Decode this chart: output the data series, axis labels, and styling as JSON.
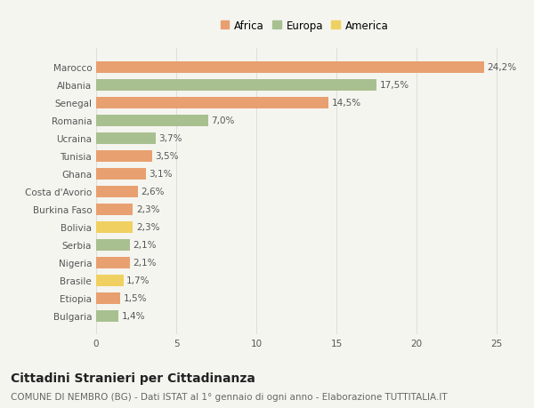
{
  "categories": [
    "Bulgaria",
    "Etiopia",
    "Brasile",
    "Nigeria",
    "Serbia",
    "Bolivia",
    "Burkina Faso",
    "Costa d'Avorio",
    "Ghana",
    "Tunisia",
    "Ucraina",
    "Romania",
    "Senegal",
    "Albania",
    "Marocco"
  ],
  "values": [
    1.4,
    1.5,
    1.7,
    2.1,
    2.1,
    2.3,
    2.3,
    2.6,
    3.1,
    3.5,
    3.7,
    7.0,
    14.5,
    17.5,
    24.2
  ],
  "colors": [
    "#a8c090",
    "#e8a070",
    "#f0d060",
    "#e8a070",
    "#a8c090",
    "#f0d060",
    "#e8a070",
    "#e8a070",
    "#e8a070",
    "#e8a070",
    "#a8c090",
    "#a8c090",
    "#e8a070",
    "#a8c090",
    "#e8a070"
  ],
  "labels": [
    "1,4%",
    "1,5%",
    "1,7%",
    "2,1%",
    "2,1%",
    "2,3%",
    "2,3%",
    "2,6%",
    "3,1%",
    "3,5%",
    "3,7%",
    "7,0%",
    "14,5%",
    "17,5%",
    "24,2%"
  ],
  "africa_color": "#e8a070",
  "europa_color": "#a8c090",
  "america_color": "#f0d060",
  "background_color": "#f5f5f0",
  "title": "Cittadini Stranieri per Cittadinanza",
  "subtitle": "COMUNE DI NEMBRO (BG) - Dati ISTAT al 1° gennaio di ogni anno - Elaborazione TUTTITALIA.IT",
  "xlim": [
    0,
    26
  ],
  "xticks": [
    0,
    5,
    10,
    15,
    20,
    25
  ],
  "bar_height": 0.65,
  "title_fontsize": 10,
  "subtitle_fontsize": 7.5,
  "label_fontsize": 7.5,
  "tick_fontsize": 7.5,
  "legend_fontsize": 8.5
}
